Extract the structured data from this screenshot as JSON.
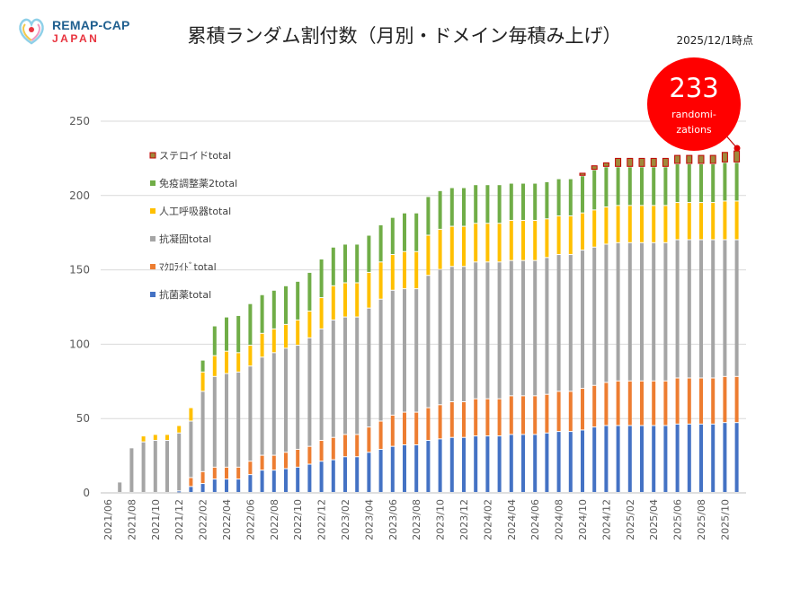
{
  "logo": {
    "line1": "REMAP-CAP",
    "line2": "JAPAN"
  },
  "header": {
    "title": "累積ランダム割付数（月別・ドメイン毎積み上げ）",
    "as_of": "2025/12/1時点"
  },
  "annotation": {
    "value": "233",
    "line1": "randomi-",
    "line2": "zations",
    "color": "#ff0000"
  },
  "chart_data": {
    "type": "bar",
    "stacked": true,
    "title": "累積ランダム割付数（月別・ドメイン毎積み上げ）",
    "xlabel": "",
    "ylabel": "",
    "ylim": [
      0,
      250
    ],
    "yticks": [
      0,
      50,
      100,
      150,
      200,
      250
    ],
    "grid": true,
    "legend_placement": "top-left",
    "categories": [
      "2021/06",
      "2021/07",
      "2021/08",
      "2021/09",
      "2021/10",
      "2021/11",
      "2021/12",
      "2022/01",
      "2022/02",
      "2022/03",
      "2022/04",
      "2022/05",
      "2022/06",
      "2022/07",
      "2022/08",
      "2022/09",
      "2022/10",
      "2022/11",
      "2022/12",
      "2023/01",
      "2023/02",
      "2023/03",
      "2023/04",
      "2023/05",
      "2023/06",
      "2023/07",
      "2023/08",
      "2023/09",
      "2023/10",
      "2023/11",
      "2023/12",
      "2024/01",
      "2024/02",
      "2024/03",
      "2024/04",
      "2024/05",
      "2024/06",
      "2024/07",
      "2024/08",
      "2024/09",
      "2024/10",
      "2024/11",
      "2024/12",
      "2025/01",
      "2025/02",
      "2025/03",
      "2025/04",
      "2025/05",
      "2025/06",
      "2025/07",
      "2025/08",
      "2025/09",
      "2025/10",
      "2025/11"
    ],
    "series": [
      {
        "name": "抗菌薬total",
        "color": "#4472c4",
        "values": [
          0,
          0,
          0,
          0,
          0,
          0,
          1,
          4,
          6,
          9,
          9,
          9,
          12,
          15,
          15,
          16,
          17,
          19,
          21,
          22,
          24,
          24,
          27,
          29,
          31,
          32,
          32,
          35,
          36,
          37,
          37,
          38,
          38,
          38,
          39,
          39,
          39,
          40,
          41,
          41,
          42,
          44,
          45,
          45,
          45,
          45,
          45,
          45,
          46,
          46,
          46,
          46,
          47,
          47
        ]
      },
      {
        "name": "ﾏｸﾛﾗｲﾄﾞtotal",
        "color": "#ed7d31",
        "values": [
          0,
          0,
          0,
          0,
          0,
          0,
          0,
          6,
          8,
          8,
          8,
          8,
          9,
          10,
          10,
          11,
          12,
          12,
          14,
          15,
          15,
          15,
          17,
          19,
          21,
          22,
          22,
          22,
          23,
          24,
          24,
          25,
          25,
          25,
          26,
          26,
          26,
          26,
          27,
          27,
          28,
          28,
          29,
          30,
          30,
          30,
          30,
          30,
          31,
          31,
          31,
          31,
          31,
          31
        ]
      },
      {
        "name": "抗凝固total",
        "color": "#a5a5a5",
        "values": [
          0,
          7,
          30,
          34,
          35,
          35,
          39,
          38,
          54,
          61,
          63,
          64,
          64,
          66,
          69,
          70,
          70,
          73,
          75,
          79,
          79,
          79,
          80,
          82,
          84,
          83,
          83,
          89,
          91,
          91,
          91,
          92,
          92,
          92,
          91,
          91,
          91,
          92,
          92,
          92,
          93,
          93,
          93,
          93,
          93,
          93,
          93,
          93,
          93,
          93,
          93,
          93,
          92,
          92
        ]
      },
      {
        "name": "人工呼吸器total",
        "color": "#ffc000",
        "values": [
          0,
          0,
          0,
          4,
          4,
          4,
          5,
          9,
          13,
          14,
          15,
          13,
          14,
          16,
          16,
          16,
          17,
          18,
          21,
          23,
          23,
          23,
          24,
          25,
          24,
          25,
          25,
          27,
          27,
          27,
          27,
          26,
          26,
          26,
          27,
          27,
          27,
          26,
          26,
          26,
          25,
          25,
          25,
          25,
          25,
          25,
          25,
          25,
          25,
          25,
          25,
          25,
          26,
          26
        ]
      },
      {
        "name": "免疫調整薬2total",
        "color": "#70ad47",
        "values": [
          0,
          0,
          0,
          0,
          0,
          0,
          0,
          0,
          8,
          20,
          23,
          25,
          28,
          26,
          26,
          26,
          26,
          26,
          26,
          26,
          26,
          26,
          25,
          25,
          25,
          26,
          26,
          26,
          26,
          26,
          26,
          26,
          26,
          26,
          25,
          25,
          25,
          25,
          25,
          25,
          25,
          27,
          27,
          26,
          26,
          26,
          26,
          26,
          26,
          26,
          26,
          26,
          26,
          26
        ]
      },
      {
        "name": "ステロイドtotal",
        "color": "#a0883a",
        "border": "#c00000",
        "values": [
          0,
          0,
          0,
          0,
          0,
          0,
          0,
          0,
          0,
          0,
          0,
          0,
          0,
          0,
          0,
          0,
          0,
          0,
          0,
          0,
          0,
          0,
          0,
          0,
          0,
          0,
          0,
          0,
          0,
          0,
          0,
          0,
          0,
          0,
          0,
          0,
          0,
          0,
          0,
          0,
          2,
          3,
          3,
          6,
          6,
          6,
          6,
          6,
          6,
          6,
          6,
          6,
          7,
          8
        ]
      }
    ]
  }
}
